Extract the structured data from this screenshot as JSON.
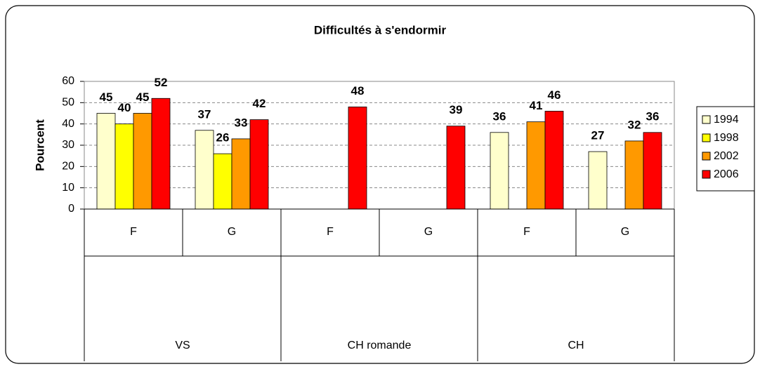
{
  "chart_data": {
    "type": "bar",
    "title": "Difficultés à s'endormir",
    "y_label": "Pourcent",
    "categories": [
      "F",
      "G",
      "F",
      "G",
      "F",
      "G"
    ],
    "groups": [
      "VS",
      "CH romande",
      "CH"
    ],
    "series": [
      {
        "name": "1994",
        "color": "#ffffcc",
        "values": [
          45,
          37,
          null,
          null,
          36,
          27
        ]
      },
      {
        "name": "1998",
        "color": "#ffff00",
        "values": [
          40,
          26,
          null,
          null,
          null,
          null
        ]
      },
      {
        "name": "2002",
        "color": "#ff9900",
        "values": [
          45,
          33,
          null,
          null,
          41,
          32
        ]
      },
      {
        "name": "2006",
        "color": "#ff0000",
        "values": [
          52,
          42,
          48,
          39,
          46,
          36
        ]
      }
    ],
    "ylim": [
      0,
      60
    ],
    "yticks": [
      0,
      10,
      20,
      30,
      40,
      50,
      60
    ],
    "grid": true,
    "legend": "right"
  }
}
